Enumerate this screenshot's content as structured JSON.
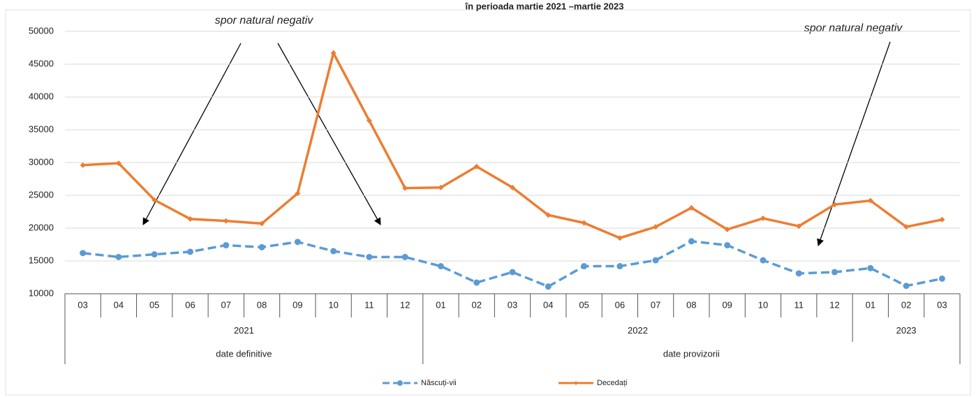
{
  "chart_data": {
    "type": "line",
    "title": "în perioada martie 2021 –martie 2023",
    "category_groups": [
      {
        "label": "date definitive",
        "years": [
          {
            "label": "2021",
            "categories": [
              "03",
              "04",
              "05",
              "06",
              "07",
              "08",
              "09",
              "10",
              "11",
              "12"
            ]
          }
        ]
      },
      {
        "label": "date provizorii",
        "years": [
          {
            "label": "2022",
            "categories": [
              "01",
              "02",
              "03",
              "04",
              "05",
              "06",
              "07",
              "08",
              "09",
              "10",
              "11",
              "12"
            ]
          },
          {
            "label": "2023",
            "categories": [
              "01",
              "02",
              "03"
            ]
          }
        ]
      }
    ],
    "series": [
      {
        "name": "Născuți-vii",
        "color": "#5b9bd5",
        "dashed": true,
        "values": [
          16200,
          15600,
          16000,
          16400,
          17400,
          17100,
          17900,
          16500,
          15600,
          15600,
          14200,
          11700,
          13300,
          11100,
          14200,
          14200,
          15100,
          18000,
          17400,
          15100,
          13100,
          13300,
          13900,
          11200,
          12300
        ]
      },
      {
        "name": "Decedați",
        "color": "#ed7d31",
        "dashed": false,
        "values": [
          29600,
          29900,
          24300,
          21400,
          21100,
          20700,
          25300,
          46700,
          36400,
          26100,
          26200,
          29400,
          26200,
          22000,
          20800,
          18500,
          20200,
          23100,
          19800,
          21500,
          20300,
          23600,
          24200,
          20200,
          21300
        ]
      }
    ],
    "ylim": [
      10000,
      50000
    ],
    "yticks": [
      10000,
      15000,
      20000,
      25000,
      30000,
      35000,
      40000,
      45000,
      50000
    ],
    "grid": true,
    "annotations": [
      "spor natural negativ",
      "spor natural negativ"
    ]
  }
}
